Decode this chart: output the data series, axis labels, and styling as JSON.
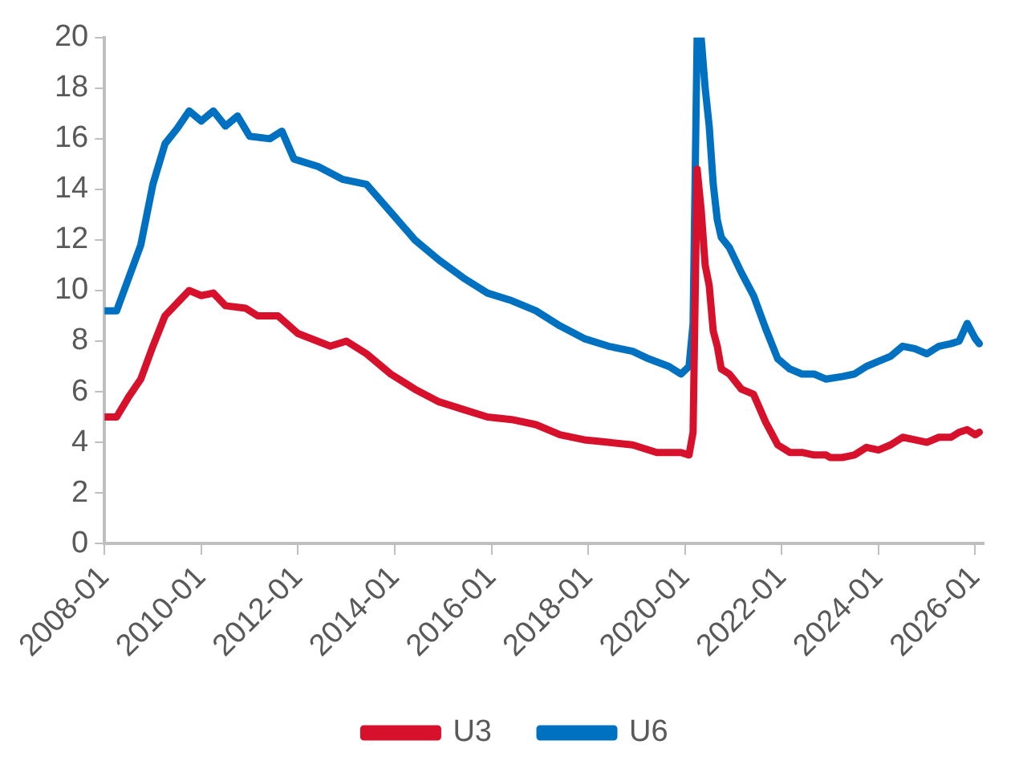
{
  "chart_data": {
    "type": "line",
    "legend": "bottom",
    "grid": false,
    "marker": "none",
    "line_style": "solid",
    "xlim": [
      "2008-01",
      "2026-03"
    ],
    "xticks": [
      "2008-01",
      "2010-01",
      "2012-01",
      "2014-01",
      "2016-01",
      "2018-01",
      "2020-01",
      "2022-01",
      "2024-01",
      "2026-01"
    ],
    "ylim": [
      0,
      20
    ],
    "yticks": [
      0,
      2,
      4,
      6,
      8,
      10,
      12,
      14,
      16,
      18,
      20
    ],
    "series": [
      {
        "name": "U3",
        "color": "#d7112b",
        "x": [
          "2008-01",
          "2008-04",
          "2008-07",
          "2008-10",
          "2009-01",
          "2009-04",
          "2009-07",
          "2009-10",
          "2010-01",
          "2010-04",
          "2010-07",
          "2010-12",
          "2011-03",
          "2011-08",
          "2012-01",
          "2012-09",
          "2013-01",
          "2013-06",
          "2013-12",
          "2014-06",
          "2014-12",
          "2015-06",
          "2015-12",
          "2016-06",
          "2016-12",
          "2017-06",
          "2017-12",
          "2018-06",
          "2018-12",
          "2019-06",
          "2019-12",
          "2020-02",
          "2020-03",
          "2020-04",
          "2020-05",
          "2020-06",
          "2020-07",
          "2020-08",
          "2020-09",
          "2020-10",
          "2020-12",
          "2021-03",
          "2021-06",
          "2021-09",
          "2021-12",
          "2022-03",
          "2022-06",
          "2022-09",
          "2022-12",
          "2023-01",
          "2023-04",
          "2023-07",
          "2023-10",
          "2024-01",
          "2024-04",
          "2024-07",
          "2024-10",
          "2025-01",
          "2025-04",
          "2025-07",
          "2025-09",
          "2025-11",
          "2026-01",
          "2026-02"
        ],
        "values": [
          5.0,
          5.0,
          5.8,
          6.5,
          7.8,
          9.0,
          9.5,
          10.0,
          9.8,
          9.9,
          9.4,
          9.3,
          9.0,
          9.0,
          8.3,
          7.8,
          8.0,
          7.5,
          6.7,
          6.1,
          5.6,
          5.3,
          5.0,
          4.9,
          4.7,
          4.3,
          4.1,
          4.0,
          3.9,
          3.6,
          3.6,
          3.5,
          4.4,
          14.8,
          13.2,
          11.0,
          10.2,
          8.4,
          7.8,
          6.9,
          6.7,
          6.1,
          5.9,
          4.8,
          3.9,
          3.6,
          3.6,
          3.5,
          3.5,
          3.4,
          3.4,
          3.5,
          3.8,
          3.7,
          3.9,
          4.2,
          4.1,
          4.0,
          4.2,
          4.2,
          4.4,
          4.5,
          4.3,
          4.4
        ]
      },
      {
        "name": "U6",
        "color": "#0070c0",
        "x": [
          "2008-01",
          "2008-04",
          "2008-07",
          "2008-10",
          "2009-01",
          "2009-04",
          "2009-07",
          "2009-10",
          "2010-01",
          "2010-04",
          "2010-07",
          "2010-10",
          "2011-01",
          "2011-06",
          "2011-09",
          "2011-12",
          "2012-06",
          "2012-12",
          "2013-06",
          "2013-12",
          "2014-06",
          "2014-12",
          "2015-06",
          "2015-12",
          "2016-06",
          "2016-12",
          "2017-06",
          "2017-12",
          "2018-06",
          "2018-12",
          "2019-04",
          "2019-09",
          "2019-12",
          "2020-02",
          "2020-03",
          "2020-04",
          "2020-05",
          "2020-06",
          "2020-07",
          "2020-08",
          "2020-09",
          "2020-10",
          "2020-12",
          "2021-03",
          "2021-06",
          "2021-09",
          "2021-12",
          "2022-03",
          "2022-06",
          "2022-09",
          "2022-12",
          "2023-04",
          "2023-07",
          "2023-10",
          "2024-01",
          "2024-04",
          "2024-07",
          "2024-10",
          "2025-01",
          "2025-04",
          "2025-07",
          "2025-09",
          "2025-11",
          "2026-01",
          "2026-02"
        ],
        "values": [
          9.2,
          9.2,
          10.5,
          11.8,
          14.2,
          15.8,
          16.4,
          17.1,
          16.7,
          17.1,
          16.5,
          16.9,
          16.1,
          16.0,
          16.3,
          15.2,
          14.9,
          14.4,
          14.2,
          13.1,
          12.0,
          11.2,
          10.5,
          9.9,
          9.6,
          9.2,
          8.6,
          8.1,
          7.8,
          7.6,
          7.3,
          7.0,
          6.7,
          7.0,
          8.7,
          20,
          20,
          18.0,
          16.5,
          14.2,
          12.8,
          12.1,
          11.7,
          10.7,
          9.8,
          8.5,
          7.3,
          6.9,
          6.7,
          6.7,
          6.5,
          6.6,
          6.7,
          7.0,
          7.2,
          7.4,
          7.8,
          7.7,
          7.5,
          7.8,
          7.9,
          8.0,
          8.7,
          8.1,
          7.9
        ]
      }
    ]
  }
}
